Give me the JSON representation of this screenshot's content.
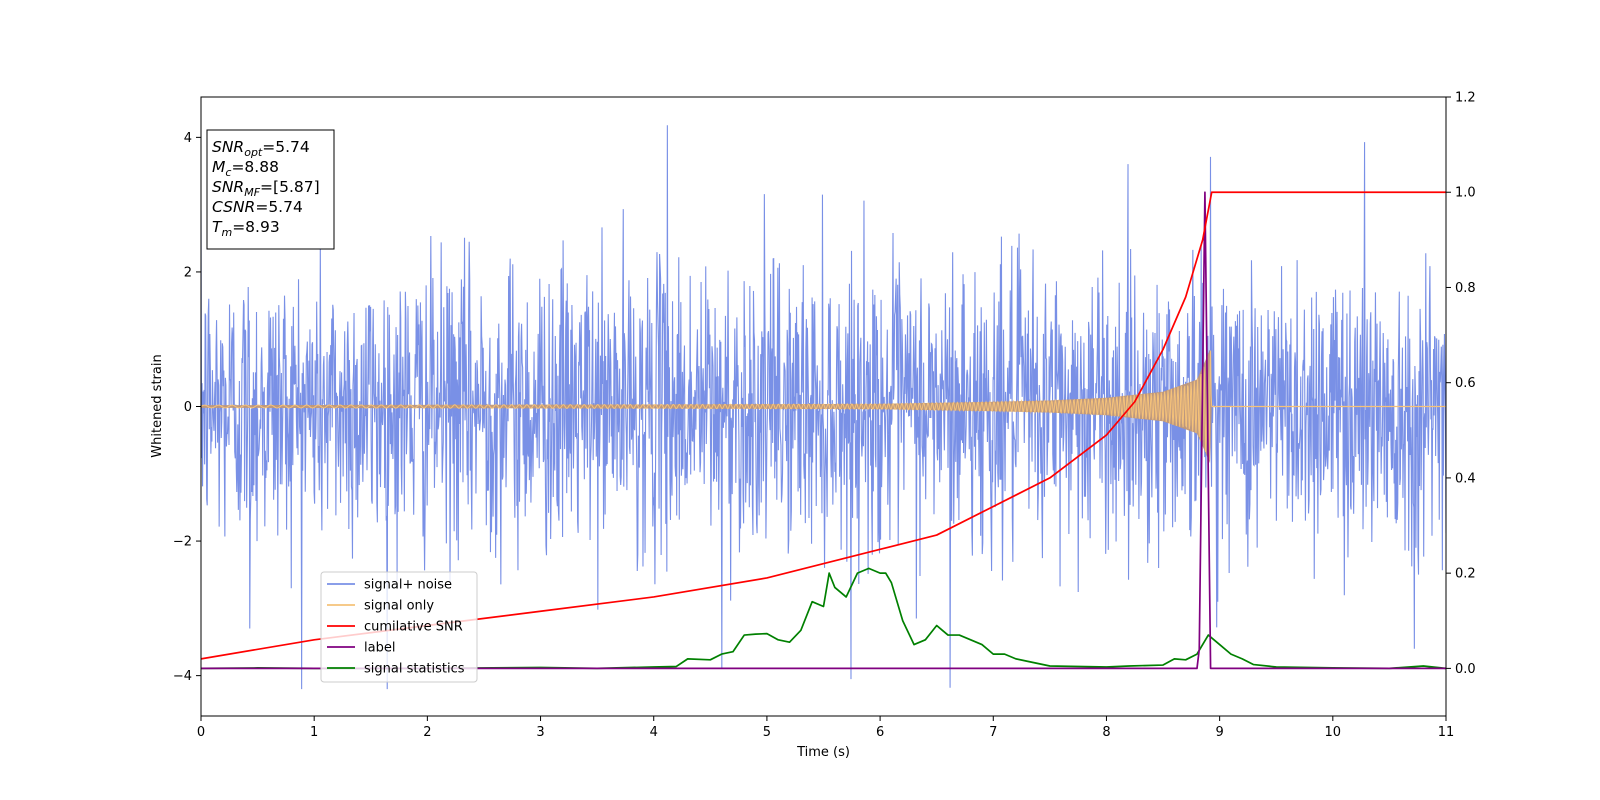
{
  "chart_data": {
    "type": "line",
    "title": "",
    "xlabel": "Time (s)",
    "ylabel": "Whitened strain",
    "y2label": "",
    "xlim": [
      0,
      11
    ],
    "ylim": [
      -4.6,
      4.6
    ],
    "y2lim": [
      -0.1,
      1.2
    ],
    "x_ticks": [
      0,
      1,
      2,
      3,
      4,
      5,
      6,
      7,
      8,
      9,
      10,
      11
    ],
    "y_ticks": [
      -4,
      -2,
      0,
      2,
      4
    ],
    "y2_ticks": [
      0.0,
      0.2,
      0.4,
      0.6,
      0.8,
      1.0,
      1.2
    ],
    "y_tick_labels": [
      "−4",
      "−2",
      "0",
      "2",
      "4"
    ],
    "y2_tick_labels": [
      "0.0",
      "0.2",
      "0.4",
      "0.6",
      "0.8",
      "1.0",
      "1.2"
    ],
    "grid": false,
    "legend_position": "lower-left",
    "annotation": [
      {
        "base": "SNR",
        "sub": "opt",
        "value": "=5.74"
      },
      {
        "base": "M",
        "sub": "c",
        "value": "=8.88"
      },
      {
        "base": "SNR",
        "sub": "MF",
        "value": "=[5.87]"
      },
      {
        "base": "CSNR",
        "sub": "",
        "value": "=5.74"
      },
      {
        "base": "T",
        "sub": "m",
        "value": "=8.93"
      }
    ],
    "series": [
      {
        "name": "signal+ noise",
        "axis": "left",
        "color": "#7990e6",
        "description_kind": "gaussian-noise",
        "noise_std": 1.0,
        "noise_range": [
          -4.2,
          4.2
        ],
        "spike_points": [
          [
            4.12,
            4.18
          ],
          [
            10.28,
            3.93
          ],
          [
            8.92,
            3.71
          ],
          [
            6.62,
            -4.18
          ],
          [
            4.6,
            -3.9
          ],
          [
            0.43,
            -3.3
          ],
          [
            10.72,
            -3.6
          ]
        ]
      },
      {
        "name": "signal only",
        "axis": "left",
        "color": "#f5c27a",
        "description_kind": "chirp",
        "chirp_start": 0,
        "chirp_merger": 8.93,
        "amplitude_points": [
          [
            0,
            0.02
          ],
          [
            4,
            0.03
          ],
          [
            6,
            0.04
          ],
          [
            7,
            0.07
          ],
          [
            7.5,
            0.09
          ],
          [
            8,
            0.13
          ],
          [
            8.5,
            0.22
          ],
          [
            8.8,
            0.4
          ],
          [
            8.93,
            0.9
          ]
        ]
      },
      {
        "name": "cumilative SNR",
        "axis": "right",
        "color": "#ff0000",
        "points": [
          [
            0,
            0.02
          ],
          [
            1,
            0.06
          ],
          [
            2,
            0.09
          ],
          [
            3,
            0.12
          ],
          [
            4,
            0.15
          ],
          [
            5,
            0.19
          ],
          [
            6,
            0.25
          ],
          [
            6.5,
            0.28
          ],
          [
            7,
            0.34
          ],
          [
            7.5,
            0.4
          ],
          [
            8,
            0.49
          ],
          [
            8.25,
            0.56
          ],
          [
            8.5,
            0.67
          ],
          [
            8.7,
            0.78
          ],
          [
            8.85,
            0.9
          ],
          [
            8.93,
            1.0
          ],
          [
            11,
            1.0
          ]
        ]
      },
      {
        "name": "label",
        "axis": "right",
        "color": "#800080",
        "points": [
          [
            0,
            0.0
          ],
          [
            8.8,
            0.0
          ],
          [
            8.82,
            0.04
          ],
          [
            8.87,
            1.0
          ],
          [
            8.92,
            0.0
          ],
          [
            11,
            0.0
          ]
        ]
      },
      {
        "name": "signal statistics",
        "axis": "right",
        "color": "#008000",
        "points": [
          [
            0,
            0.0
          ],
          [
            0.5,
            0.001
          ],
          [
            1,
            0.0
          ],
          [
            2,
            0.0
          ],
          [
            3,
            0.002
          ],
          [
            3.5,
            0.0
          ],
          [
            4,
            0.003
          ],
          [
            4.2,
            0.004
          ],
          [
            4.3,
            0.02
          ],
          [
            4.5,
            0.018
          ],
          [
            4.6,
            0.03
          ],
          [
            4.7,
            0.035
          ],
          [
            4.8,
            0.07
          ],
          [
            4.9,
            0.072
          ],
          [
            5.0,
            0.073
          ],
          [
            5.1,
            0.06
          ],
          [
            5.2,
            0.055
          ],
          [
            5.3,
            0.08
          ],
          [
            5.4,
            0.14
          ],
          [
            5.5,
            0.13
          ],
          [
            5.55,
            0.2
          ],
          [
            5.6,
            0.17
          ],
          [
            5.7,
            0.15
          ],
          [
            5.8,
            0.2
          ],
          [
            5.9,
            0.21
          ],
          [
            6.0,
            0.2
          ],
          [
            6.05,
            0.2
          ],
          [
            6.1,
            0.18
          ],
          [
            6.2,
            0.1
          ],
          [
            6.3,
            0.05
          ],
          [
            6.4,
            0.06
          ],
          [
            6.5,
            0.09
          ],
          [
            6.55,
            0.08
          ],
          [
            6.6,
            0.07
          ],
          [
            6.7,
            0.07
          ],
          [
            6.8,
            0.06
          ],
          [
            6.9,
            0.05
          ],
          [
            7.0,
            0.03
          ],
          [
            7.1,
            0.03
          ],
          [
            7.2,
            0.02
          ],
          [
            7.3,
            0.015
          ],
          [
            7.5,
            0.005
          ],
          [
            8.0,
            0.003
          ],
          [
            8.2,
            0.005
          ],
          [
            8.5,
            0.007
          ],
          [
            8.6,
            0.02
          ],
          [
            8.7,
            0.018
          ],
          [
            8.8,
            0.03
          ],
          [
            8.9,
            0.07
          ],
          [
            9.0,
            0.05
          ],
          [
            9.1,
            0.03
          ],
          [
            9.2,
            0.02
          ],
          [
            9.3,
            0.008
          ],
          [
            9.5,
            0.003
          ],
          [
            10,
            0.001
          ],
          [
            10.5,
            0.0
          ],
          [
            10.8,
            0.005
          ],
          [
            11,
            0.0
          ]
        ]
      }
    ]
  },
  "colors": {
    "noise": "#7990e6",
    "signal": "#f5c27a",
    "overlap": "#c09878",
    "cumulative_snr": "#ff0000",
    "label": "#800080",
    "statistics": "#008000"
  }
}
